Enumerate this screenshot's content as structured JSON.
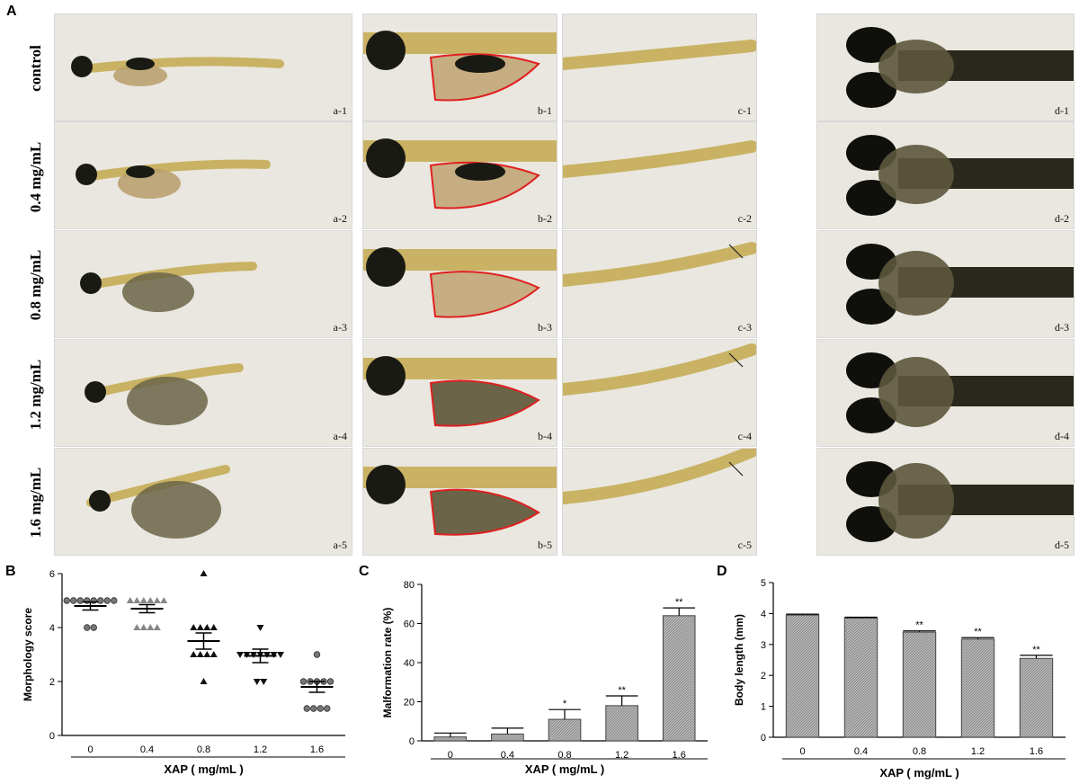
{
  "panels": {
    "A": "A",
    "B": "B",
    "C": "C",
    "D": "D"
  },
  "row_labels": [
    "control",
    "0.4 mg/mL",
    "0.8 mg/mL",
    "1.2 mg/mL",
    "1.6 mg/mL"
  ],
  "photo_labels": [
    [
      "a-1",
      "b-1",
      "c-1",
      "d-1"
    ],
    [
      "a-2",
      "b-2",
      "c-2",
      "d-2"
    ],
    [
      "a-3",
      "b-3",
      "c-3",
      "d-3"
    ],
    [
      "a-4",
      "b-4",
      "c-4",
      "d-4"
    ],
    [
      "a-5",
      "b-5",
      "c-5",
      "d-5"
    ]
  ],
  "chart_data": [
    {
      "type": "scatter",
      "panel": "B",
      "ylabel": "Morphology score",
      "xlabel": "XAP ( mg/mL )",
      "categories": [
        "0",
        "0.4",
        "0.8",
        "1.2",
        "1.6"
      ],
      "ylim": [
        0,
        6
      ],
      "yticks": [
        "0",
        "2",
        "4",
        "6"
      ],
      "means": [
        4.8,
        4.7,
        3.5,
        2.95,
        1.8
      ],
      "sem": [
        0.15,
        0.15,
        0.3,
        0.25,
        0.2
      ],
      "points": [
        [
          5,
          5,
          5,
          5,
          5,
          5,
          5,
          4,
          4,
          5
        ],
        [
          5,
          5,
          5,
          5,
          5,
          5,
          4,
          4,
          4,
          4
        ],
        [
          6,
          4,
          4,
          4,
          4,
          3,
          3,
          3,
          3,
          2
        ],
        [
          4,
          3,
          3,
          3,
          3,
          3,
          3,
          3,
          2,
          2
        ],
        [
          3,
          2,
          2,
          2,
          2,
          2,
          1,
          1,
          1,
          1
        ]
      ],
      "markers": [
        "circle",
        "triangle-up",
        "triangle-up",
        "triangle-down",
        "circle"
      ]
    },
    {
      "type": "bar",
      "panel": "C",
      "ylabel": "Malformation rate (%)",
      "xlabel": "XAP ( mg/mL )",
      "categories": [
        "0",
        "0.4",
        "0.8",
        "1.2",
        "1.6"
      ],
      "values": [
        2,
        3.5,
        11,
        18,
        64
      ],
      "errors": [
        2,
        3,
        5,
        5,
        4
      ],
      "significance": [
        "",
        "",
        "*",
        "**",
        "**"
      ],
      "ylim": [
        0,
        80
      ],
      "yticks": [
        "0",
        "20",
        "40",
        "60",
        "80"
      ]
    },
    {
      "type": "bar",
      "panel": "D",
      "ylabel": "Body length (mm)",
      "xlabel": "XAP ( mg/mL )",
      "categories": [
        "0",
        "0.4",
        "0.8",
        "1.2",
        "1.6"
      ],
      "values": [
        3.95,
        3.85,
        3.4,
        3.17,
        2.55
      ],
      "errors": [
        0.03,
        0.03,
        0.04,
        0.05,
        0.1
      ],
      "significance": [
        "",
        "",
        "**",
        "**",
        "**"
      ],
      "ylim": [
        0,
        5
      ],
      "yticks": [
        "0",
        "1",
        "2",
        "3",
        "4",
        "5"
      ]
    }
  ],
  "colors": {
    "outline": "#e02020",
    "bar": "#b8b8b8",
    "photo_bg": "#e9e7df"
  }
}
